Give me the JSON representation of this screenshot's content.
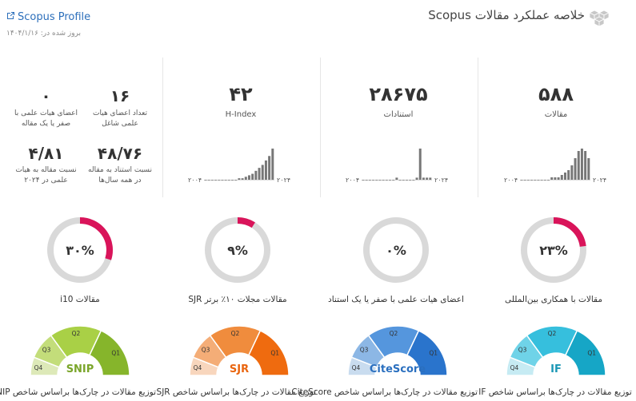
{
  "header": {
    "title": "خلاصه عملکرد مقالات Scopus",
    "profile_link": "Scopus Profile",
    "updated": "بروز شده در: ۱۴۰۴/۱/۱۶"
  },
  "kpis": {
    "articles": {
      "value": "۵۸۸",
      "label": "مقالات"
    },
    "citations": {
      "value": "۲۸۶۷۵",
      "label": "استنادات"
    },
    "hindex": {
      "value": "۴۲",
      "label": "H-Index"
    },
    "faculty_count": {
      "value": "۱۶",
      "label": "تعداد اعضای هیات علمی شاغل"
    },
    "zero_faculty": {
      "value": "۰",
      "label": "اعضای هیات علمی با صفر یا یک مقاله"
    },
    "citation_ratio": {
      "value": "۴۸/۷۶",
      "label": "نسبت استناد به مقاله در همه سال‌ها"
    },
    "article_ratio": {
      "value": "۴/۸۱",
      "label": "نسبت مقاله به هیات علمی در ۲۰۲۴"
    }
  },
  "sparks": {
    "start_label": "۲۰۰۴",
    "end_label": "۲۰۲۴",
    "articles": [
      0,
      0,
      0,
      0,
      0,
      0,
      0,
      0,
      0,
      1,
      1,
      1,
      2,
      3,
      4,
      6,
      9,
      12,
      13,
      12,
      9
    ],
    "citations": [
      0,
      0,
      0,
      0,
      0,
      0,
      0,
      0,
      0,
      0,
      1,
      0,
      0,
      0,
      0,
      0,
      1,
      15,
      1,
      1,
      1
    ],
    "hindex": [
      0,
      0,
      0,
      0,
      0,
      0,
      0,
      0,
      0,
      0,
      1,
      1,
      2,
      3,
      4,
      6,
      8,
      10,
      13,
      16,
      21
    ]
  },
  "rings": [
    {
      "label": "مقالات i10",
      "pct": 30,
      "text": "۳۰%"
    },
    {
      "label": "مقالات مجلات ۱۰٪ برتر SJR",
      "pct": 9,
      "text": "۹%"
    },
    {
      "label": "اعضای هیات علمی با صفر یا یک استناد",
      "pct": 0,
      "text": "۰%"
    },
    {
      "label": "مقالات با همکاری بین‌المللی",
      "pct": 23,
      "text": "۲۳%"
    }
  ],
  "gauges": [
    {
      "name": "SNIP",
      "label": "توزیع مقالات در چارک‌ها براساس شاخص SNIP",
      "colors": [
        "#dde9b8",
        "#c3dd7a",
        "#a9d046",
        "#86b52b"
      ],
      "text_color": "#7aa52a"
    },
    {
      "name": "SJR",
      "label": "توزیع مقالات در چارک‌ها براساس شاخص SJR",
      "colors": [
        "#f8d6bd",
        "#f4ad77",
        "#f08c3d",
        "#ef6b0f"
      ],
      "text_color": "#e9650f"
    },
    {
      "name": "CiteScore",
      "label": "توزیع مقالات در چارک‌ها براساس شاخص CiteScore",
      "colors": [
        "#c9dcef",
        "#8cb7e5",
        "#5596dd",
        "#2a74cc"
      ],
      "text_color": "#2a6fbf"
    },
    {
      "name": "IF",
      "label": "توزیع مقالات در چارک‌ها براساس شاخص IF",
      "colors": [
        "#c6ebf3",
        "#6fd3e8",
        "#36bfdd",
        "#16a6c6"
      ],
      "text_color": "#1a97b5"
    }
  ],
  "quartiles": [
    "Q4",
    "Q3",
    "Q2",
    "Q1"
  ],
  "colors": {
    "accent": "#d9145a",
    "ring_bg": "#d9d9d9",
    "link": "#2c6fbb",
    "bar": "#777777"
  }
}
